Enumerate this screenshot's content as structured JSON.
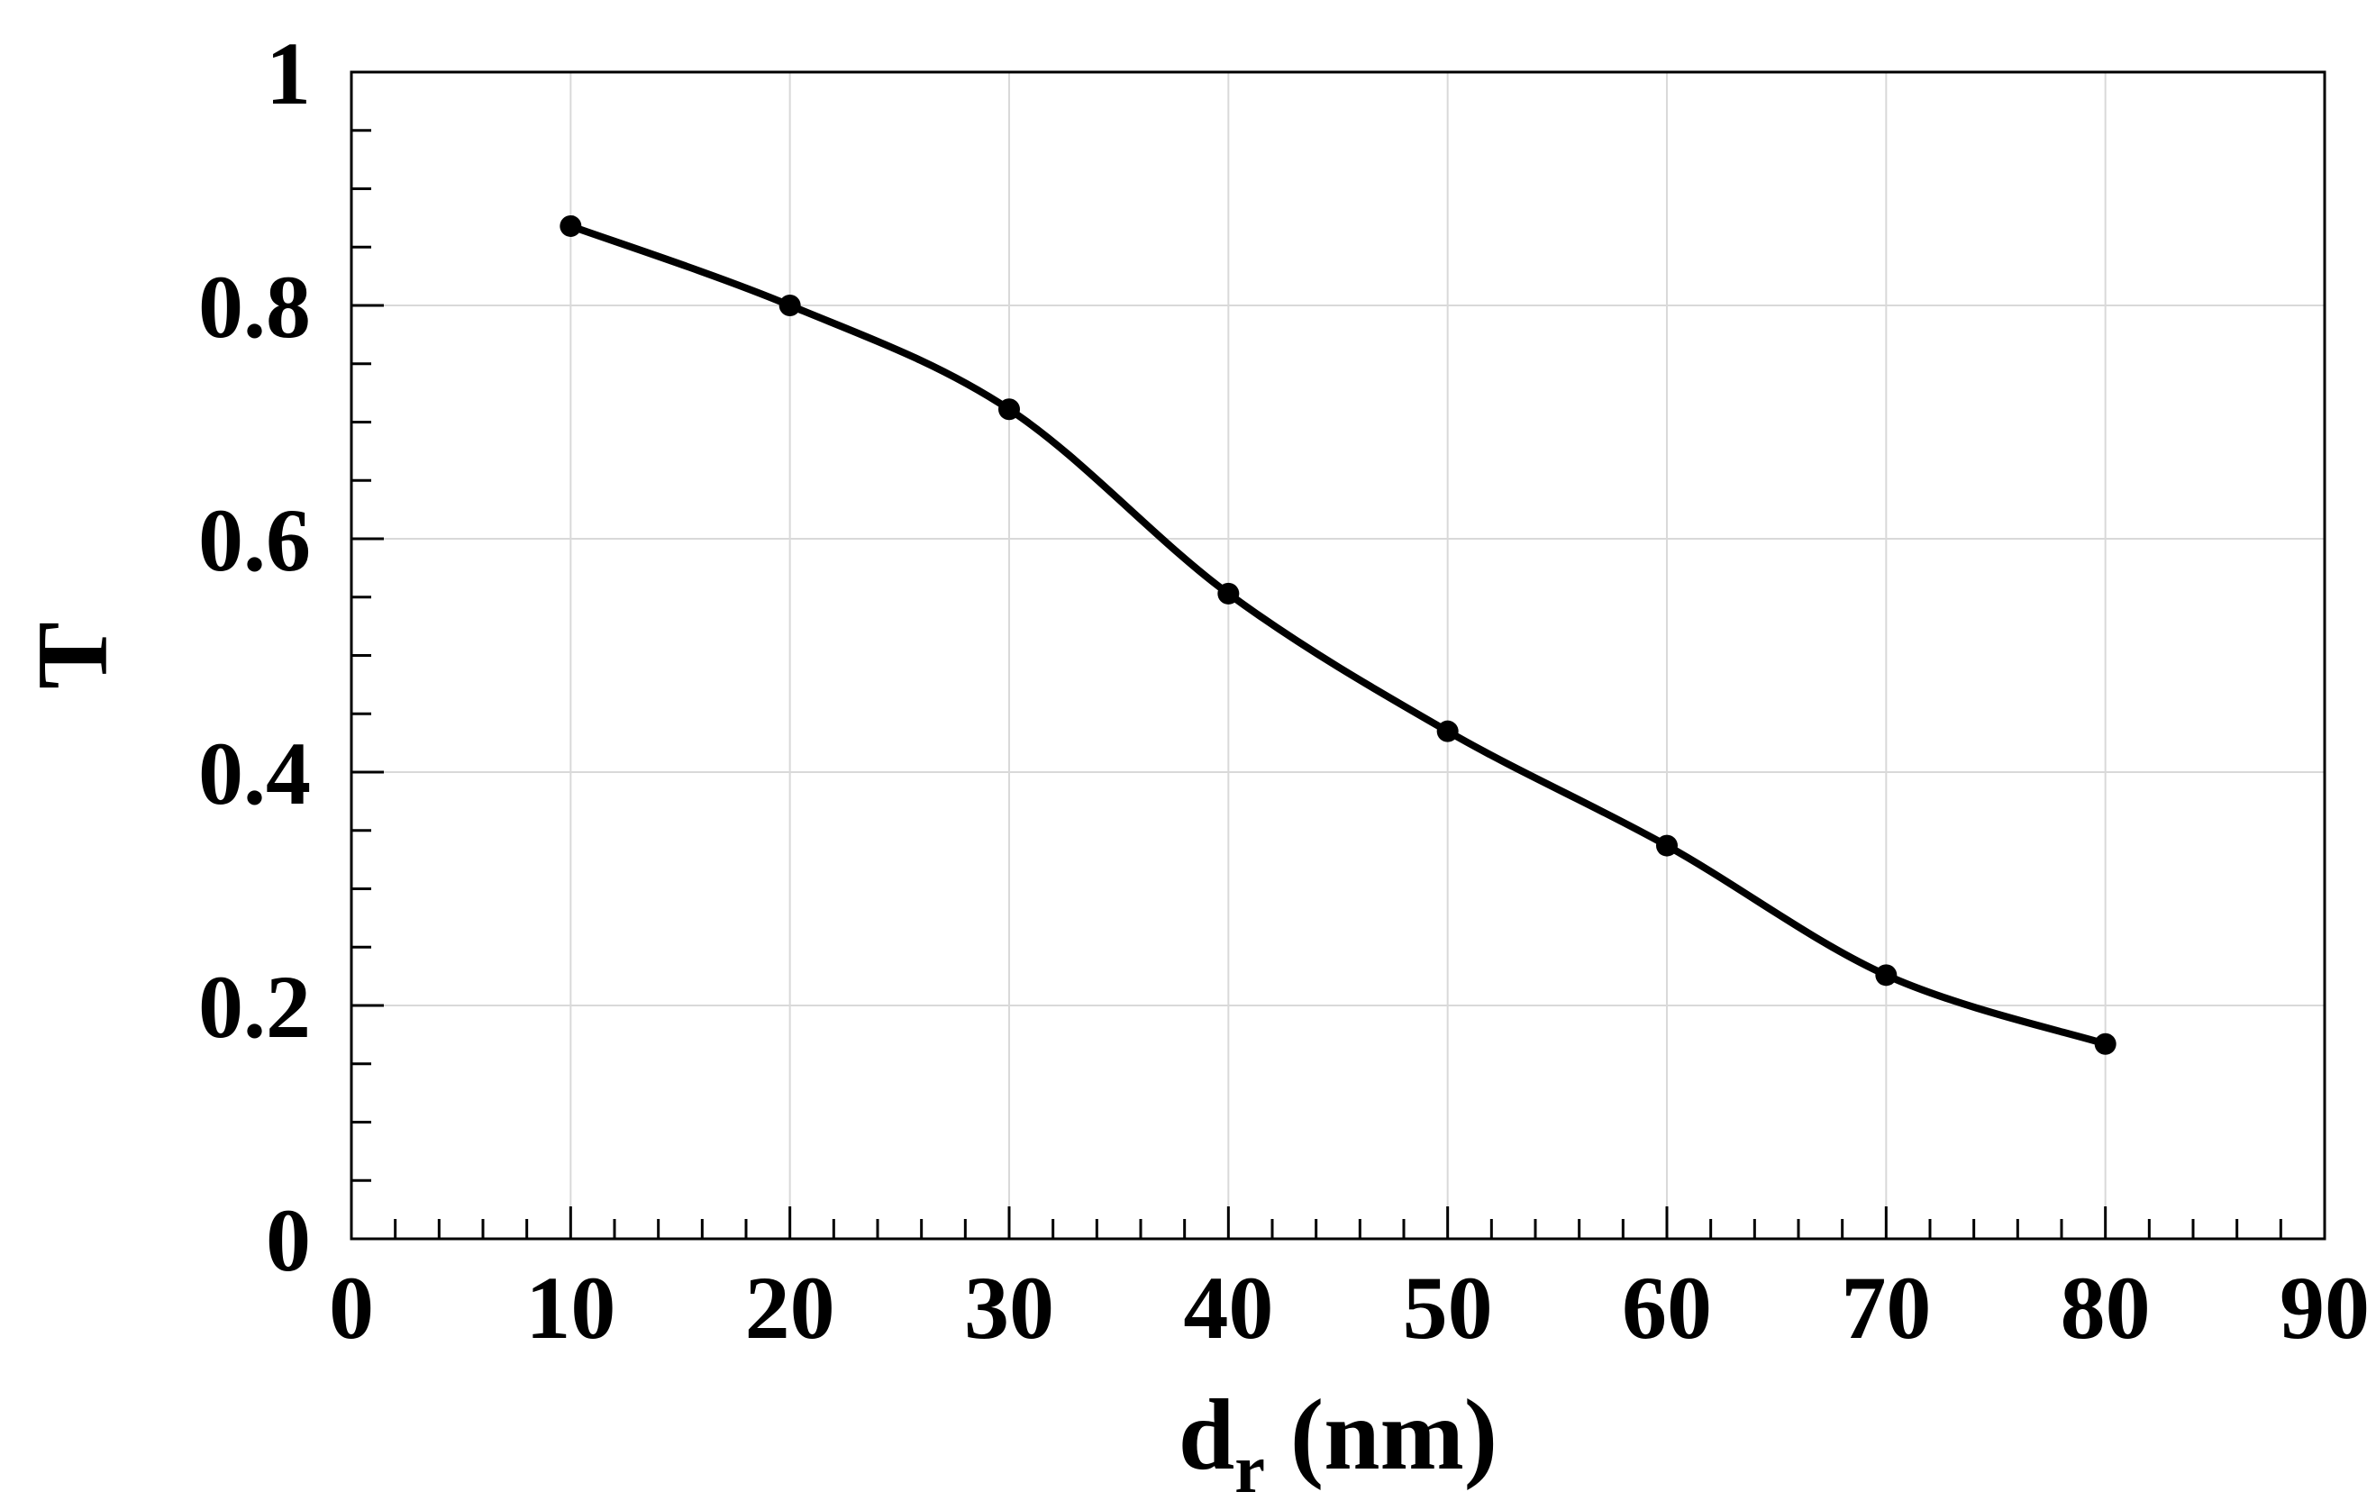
{
  "chart_data": {
    "type": "line",
    "x": [
      10,
      20,
      30,
      40,
      50,
      60,
      70,
      80
    ],
    "series": [
      {
        "values": [
          0.868,
          0.8,
          0.711,
          0.553,
          0.435,
          0.337,
          0.226,
          0.167
        ],
        "color": "#000000",
        "marker": "circle"
      }
    ],
    "xlabel": {
      "main": "d",
      "sub": "r",
      "unit": " (nm)"
    },
    "ylabel": "T",
    "xlim": [
      0,
      90
    ],
    "ylim": [
      0,
      1
    ],
    "xticks": [
      0,
      10,
      20,
      30,
      40,
      50,
      60,
      70,
      80,
      90
    ],
    "xtick_labels": [
      "0",
      "10",
      "20",
      "30",
      "40",
      "50",
      "60",
      "70",
      "80",
      "90"
    ],
    "yticks": [
      0,
      0.2,
      0.4,
      0.6,
      0.8,
      1
    ],
    "ytick_labels": [
      "0",
      "0.2",
      "0.4",
      "0.6",
      "0.8",
      "1"
    ],
    "grid": true,
    "grid_color": "#d9d9d9",
    "axis_color": "#000000",
    "legend": "none"
  }
}
